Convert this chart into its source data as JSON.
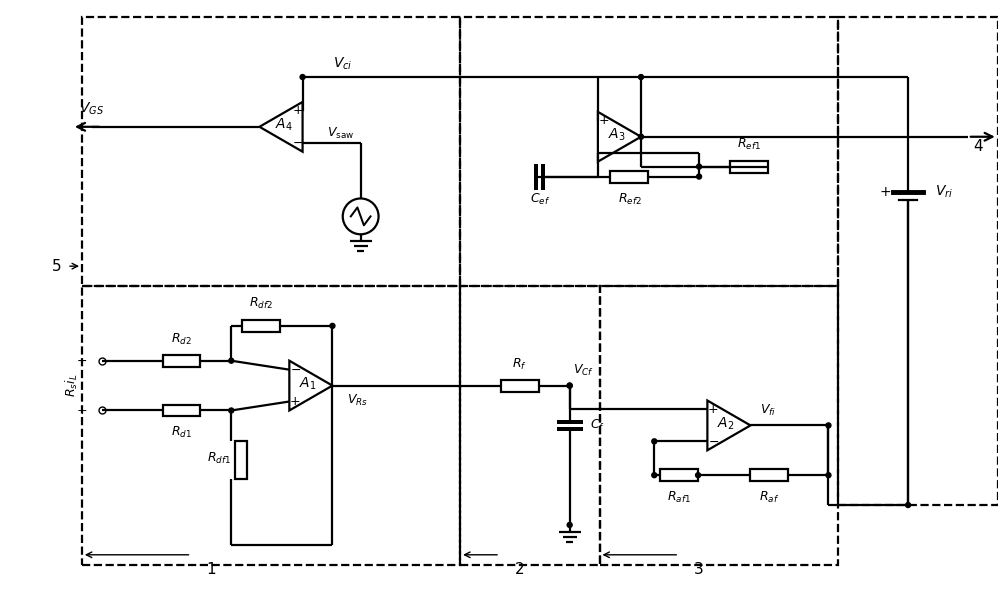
{
  "fig_width": 10.0,
  "fig_height": 5.96,
  "lw": 1.6,
  "fs": 10,
  "fs_n": 11,
  "dot_r": 0.25,
  "RW": 3.8,
  "RH": 1.2,
  "OS": 5.0,
  "SAW_R": 1.8
}
